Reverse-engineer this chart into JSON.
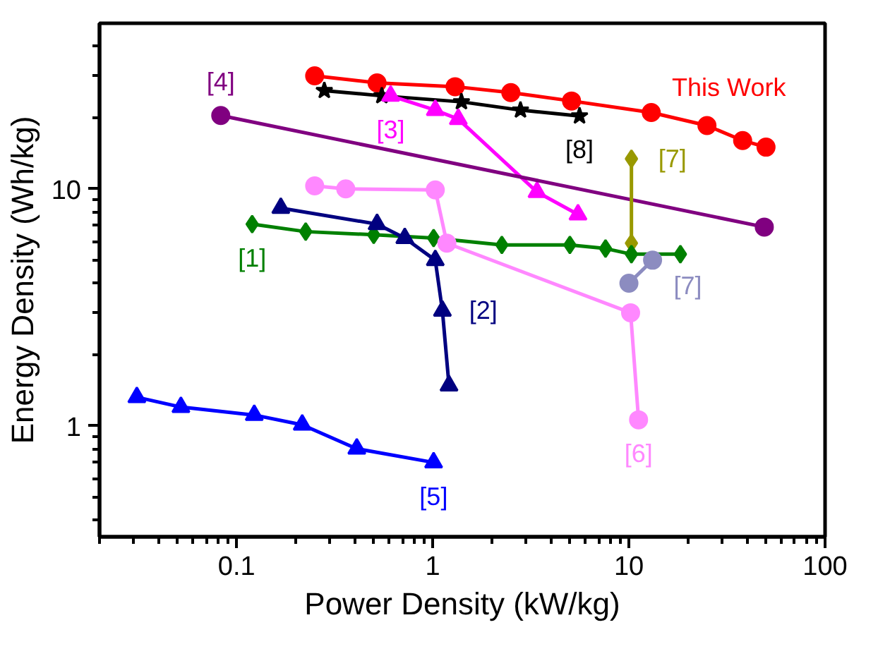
{
  "chart_data": {
    "type": "line",
    "xlabel": "Power Density (kW/kg)",
    "ylabel": "Energy Density (Wh/kg)",
    "log": "xy",
    "grid": false,
    "line_style": "solid",
    "xlim": [
      0.02,
      100
    ],
    "ylim": [
      0.34,
      50
    ],
    "xticks": [
      {
        "value": 0.02,
        "label": null
      },
      {
        "value": 0.03,
        "label": null
      },
      {
        "value": 0.04,
        "label": null
      },
      {
        "value": 0.05,
        "label": null
      },
      {
        "value": 0.06,
        "label": null
      },
      {
        "value": 0.07,
        "label": null
      },
      {
        "value": 0.08,
        "label": null
      },
      {
        "value": 0.09,
        "label": null
      },
      {
        "value": 0.1,
        "label": "0.1"
      },
      {
        "value": 0.2,
        "label": null
      },
      {
        "value": 0.3,
        "label": null
      },
      {
        "value": 0.4,
        "label": null
      },
      {
        "value": 0.5,
        "label": null
      },
      {
        "value": 0.6,
        "label": null
      },
      {
        "value": 0.7,
        "label": null
      },
      {
        "value": 0.8,
        "label": null
      },
      {
        "value": 0.9,
        "label": null
      },
      {
        "value": 1,
        "label": "1"
      },
      {
        "value": 2,
        "label": null
      },
      {
        "value": 3,
        "label": null
      },
      {
        "value": 4,
        "label": null
      },
      {
        "value": 5,
        "label": null
      },
      {
        "value": 6,
        "label": null
      },
      {
        "value": 7,
        "label": null
      },
      {
        "value": 8,
        "label": null
      },
      {
        "value": 9,
        "label": null
      },
      {
        "value": 10,
        "label": "10"
      },
      {
        "value": 20,
        "label": null
      },
      {
        "value": 30,
        "label": null
      },
      {
        "value": 40,
        "label": null
      },
      {
        "value": 50,
        "label": null
      },
      {
        "value": 60,
        "label": null
      },
      {
        "value": 70,
        "label": null
      },
      {
        "value": 80,
        "label": null
      },
      {
        "value": 90,
        "label": null
      },
      {
        "value": 100,
        "label": "100"
      }
    ],
    "yticks": [
      {
        "value": 0.4,
        "label": null
      },
      {
        "value": 0.5,
        "label": null
      },
      {
        "value": 0.6,
        "label": null
      },
      {
        "value": 0.7,
        "label": null
      },
      {
        "value": 0.8,
        "label": null
      },
      {
        "value": 0.9,
        "label": null
      },
      {
        "value": 1,
        "label": "1"
      },
      {
        "value": 2,
        "label": null
      },
      {
        "value": 3,
        "label": null
      },
      {
        "value": 4,
        "label": null
      },
      {
        "value": 5,
        "label": null
      },
      {
        "value": 6,
        "label": null
      },
      {
        "value": 7,
        "label": null
      },
      {
        "value": 8,
        "label": null
      },
      {
        "value": 9,
        "label": null
      },
      {
        "value": 10,
        "label": "10"
      },
      {
        "value": 20,
        "label": null
      },
      {
        "value": 30,
        "label": null
      },
      {
        "value": 40,
        "label": null
      }
    ],
    "series": [
      {
        "color": "#ff0000",
        "marker": "circle",
        "x": [
          0.25,
          0.52,
          1.3,
          2.5,
          5.1,
          13,
          25,
          38,
          50
        ],
        "values": [
          30,
          28,
          27,
          25.5,
          23.5,
          21,
          18.5,
          16,
          15
        ]
      },
      {
        "color": "#000000",
        "marker": "star",
        "x": [
          0.28,
          0.55,
          1.4,
          2.8,
          5.6
        ],
        "values": [
          26,
          24.7,
          23.3,
          21.5,
          20.3
        ]
      },
      {
        "color": "#ff00ff",
        "marker": "triangle",
        "x": [
          0.61,
          1.03,
          1.35,
          3.4,
          5.5
        ],
        "values": [
          24.7,
          21.5,
          19.7,
          9.7,
          7.8
        ]
      },
      {
        "color": "#800080",
        "marker": "circle",
        "x": [
          0.083,
          49
        ],
        "values": [
          20.4,
          6.9
        ]
      },
      {
        "color": "#999900",
        "marker": "diamond",
        "x": [
          10.3,
          10.3
        ],
        "values": [
          13.4,
          5.9
        ]
      },
      {
        "color": "#008000",
        "marker": "diamond",
        "x": [
          0.12,
          0.225,
          0.5,
          1.01,
          2.25,
          5,
          7.6,
          10.3,
          18.3
        ],
        "values": [
          7.1,
          6.6,
          6.4,
          6.2,
          5.8,
          5.8,
          5.6,
          5.3,
          5.3
        ]
      },
      {
        "color": "#8c8cc0",
        "marker": "circle",
        "x": [
          10,
          13.2
        ],
        "values": [
          4,
          5
        ]
      },
      {
        "color": "#ff88ff",
        "marker": "circle",
        "x": [
          0.25,
          0.36,
          1.03,
          1.18,
          10.2,
          11.2
        ],
        "values": [
          10.3,
          10,
          9.9,
          5.9,
          3,
          1.06
        ]
      },
      {
        "color": "#000080",
        "marker": "triangle",
        "x": [
          0.168,
          0.52,
          0.72,
          1.03,
          1.12,
          1.21
        ],
        "values": [
          8.3,
          7.1,
          6.2,
          5,
          3.06,
          1.48
        ]
      },
      {
        "color": "#0000ff",
        "marker": "triangle",
        "x": [
          0.031,
          0.052,
          0.123,
          0.216,
          0.41,
          1.01
        ],
        "values": [
          1.32,
          1.2,
          1.11,
          1.01,
          0.8,
          0.7
        ]
      }
    ],
    "annotations": [
      {
        "text": "This Work",
        "x": 13,
        "y": 21
      },
      {
        "text": "[8]",
        "x": 5.6,
        "y": 20.3
      },
      {
        "text": "[3]",
        "x": 0.61,
        "y": 24.7
      },
      {
        "text": "[4]",
        "x": 0.083,
        "y": 20.4
      },
      {
        "text": "[7]",
        "x": 10.3,
        "y": 13.4
      },
      {
        "text": "[1]",
        "x": 0.12,
        "y": 7.1
      },
      {
        "text": "[2]",
        "x": 1.12,
        "y": 3.06
      },
      {
        "text": "[7]",
        "x": 13.2,
        "y": 5
      },
      {
        "text": "[6]",
        "x": 11.2,
        "y": 1.06
      },
      {
        "text": "[5]",
        "x": 1.01,
        "y": 0.7
      }
    ]
  }
}
